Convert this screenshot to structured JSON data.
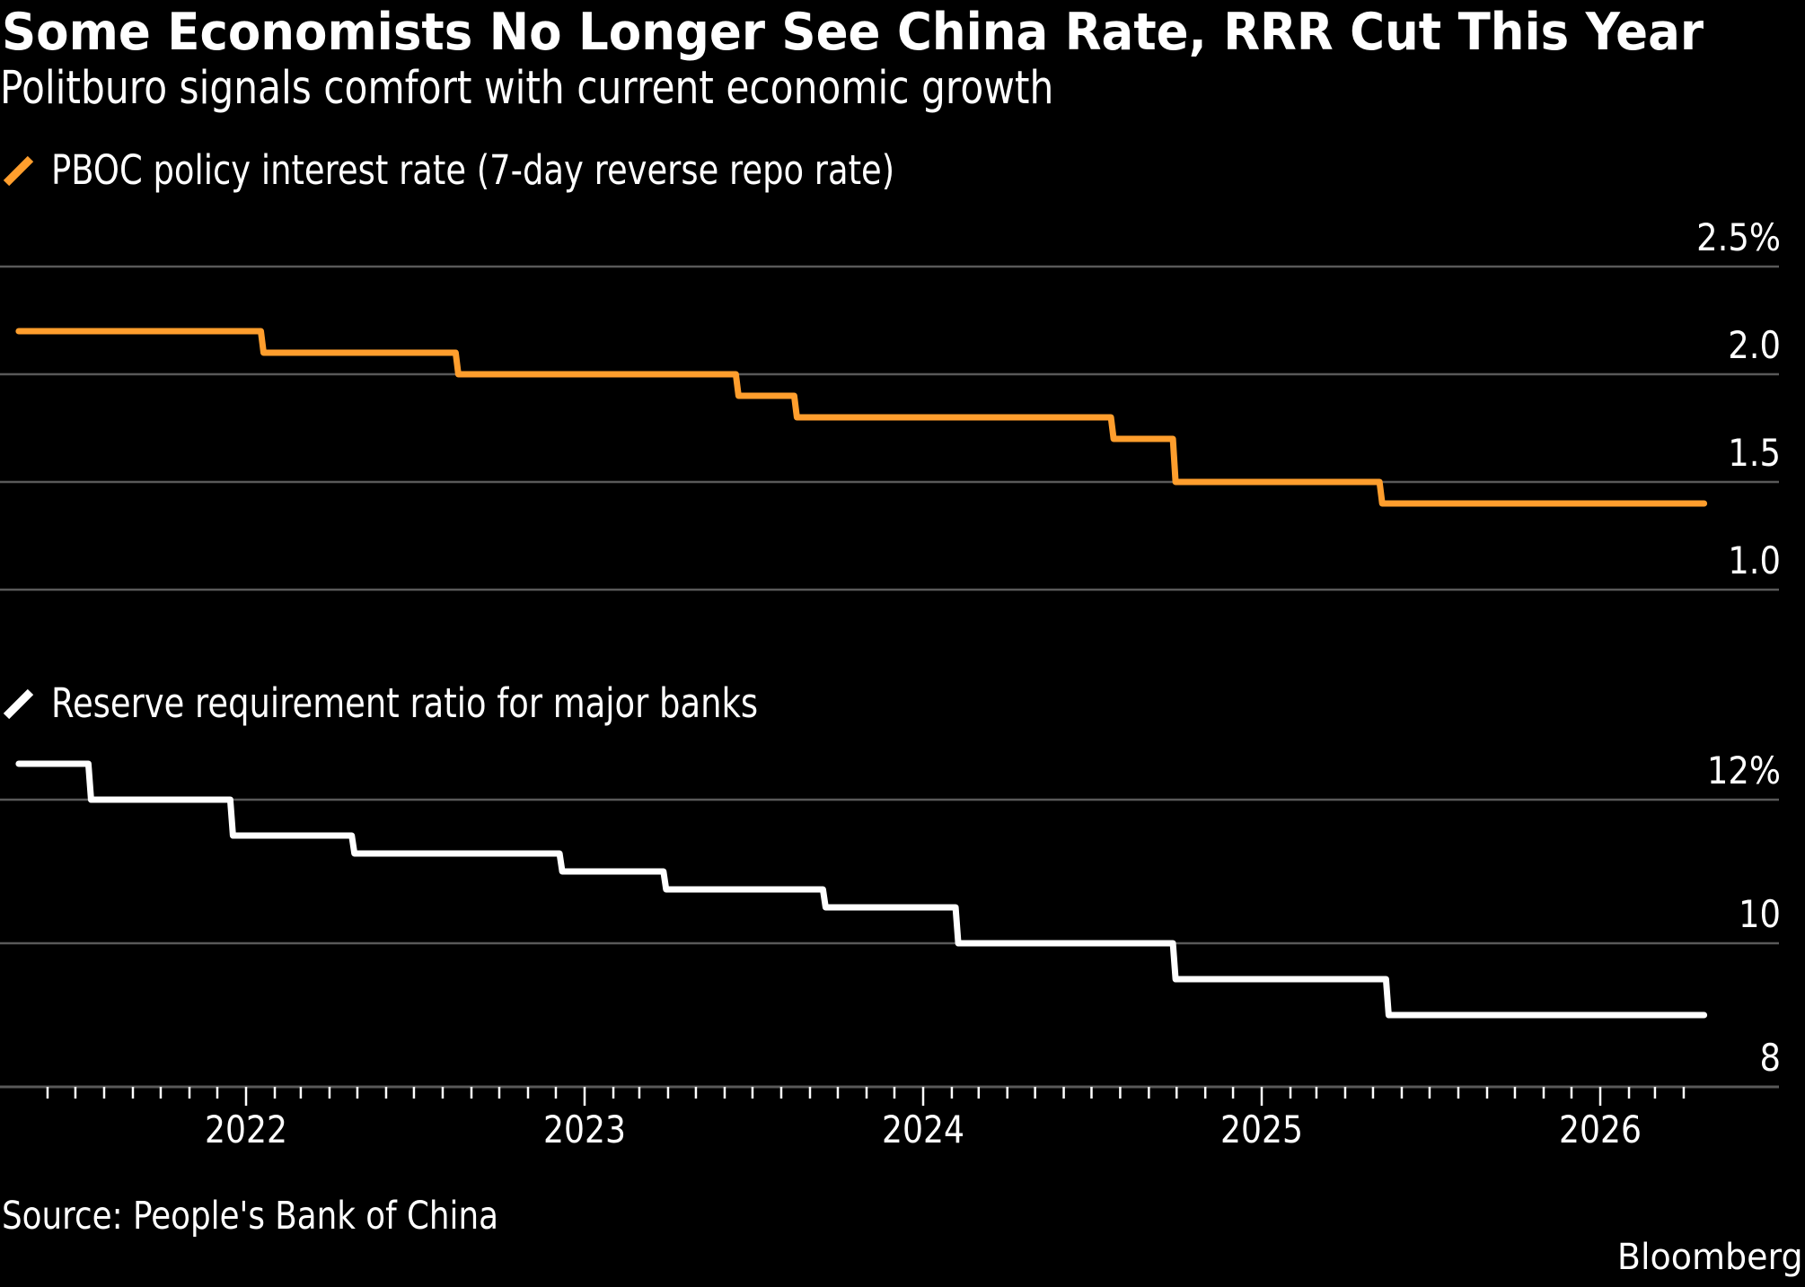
{
  "header": {
    "title": "Some Economists No Longer See China Rate, RRR Cut This Year",
    "subtitle": "Politburo signals comfort with current economic growth"
  },
  "footer": {
    "source": "Source: People's Bank of China",
    "brand": "Bloomberg"
  },
  "colors": {
    "background": "#000000",
    "rate_series": "#FF9E2D",
    "rrr_series": "#FFFFFF",
    "gridline": "#595959",
    "text": "#FFFFFF"
  },
  "chart_data": [
    {
      "type": "line",
      "step": true,
      "title": "PBOC policy interest rate (7-day reverse repo rate)",
      "legend": {
        "label": "PBOC policy interest rate (7-day reverse repo rate)",
        "icon": "diagonal-line-swatch",
        "placement": "top-left"
      },
      "xlabel": "",
      "ylabel": "",
      "ylim": [
        1.0,
        2.5
      ],
      "yticks": [
        2.5,
        2.0,
        1.5,
        1.0
      ],
      "ytick_labels": [
        "2.5%",
        "2.0",
        "1.5",
        "1.0"
      ],
      "grid": true,
      "axis_side": "right",
      "x_range": [
        "2021-05-01",
        "2026-04-20"
      ],
      "series": [
        {
          "name": "PBOC policy interest rate (7-day reverse repo rate)",
          "x": [
            "2021-05-01",
            "2022-01-17",
            "2022-08-15",
            "2023-06-13",
            "2023-08-15",
            "2024-07-22",
            "2024-09-27",
            "2025-05-08",
            "2026-04-20"
          ],
          "values": [
            2.2,
            2.1,
            2.0,
            1.9,
            1.8,
            1.7,
            1.5,
            1.4,
            1.4
          ]
        }
      ]
    },
    {
      "type": "line",
      "step": true,
      "title": "Reserve requirement ratio for major banks",
      "legend": {
        "label": "Reserve requirement ratio for major banks",
        "icon": "diagonal-line-swatch",
        "placement": "top-left"
      },
      "xlabel": "",
      "ylabel": "",
      "ylim": [
        8,
        12
      ],
      "yticks": [
        12,
        10,
        8
      ],
      "ytick_labels": [
        "12%",
        "10",
        "8"
      ],
      "grid": true,
      "axis_side": "right",
      "x_range": [
        "2021-05-01",
        "2026-04-20"
      ],
      "xticks": [
        "2022",
        "2023",
        "2024",
        "2025",
        "2026"
      ],
      "xtick_minor": "monthly",
      "series": [
        {
          "name": "Reserve requirement ratio for major banks",
          "x": [
            "2021-05-01",
            "2021-07-15",
            "2021-12-15",
            "2022-04-25",
            "2022-12-05",
            "2023-03-27",
            "2023-09-15",
            "2024-02-05",
            "2024-09-27",
            "2025-05-15",
            "2026-04-20"
          ],
          "values": [
            12.5,
            12.0,
            11.5,
            11.25,
            11.0,
            10.75,
            10.5,
            10.0,
            9.5,
            9.0,
            9.0
          ]
        }
      ]
    }
  ]
}
